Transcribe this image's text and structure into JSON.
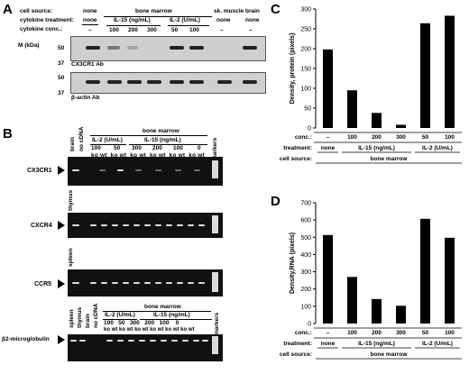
{
  "panel_a": {
    "letter": "A",
    "row_labels": {
      "cell_source": "cell source:",
      "cytokine_treatment": "cytokine treatment:",
      "cytokine_conc": "cytokine conc.:"
    },
    "cell_source": {
      "none": "none",
      "bone_marrow": "bone marrow",
      "sk_muscle": "sk. muscle",
      "brain": "brain"
    },
    "treatment": {
      "none1": "none",
      "il15": "IL-15 (ng/mL)",
      "il2": "IL-2 (U/mL)",
      "none2": "none",
      "none3": "none"
    },
    "conc": [
      "–",
      "100",
      "200",
      "300",
      "50",
      "100",
      "–",
      "–"
    ],
    "mw_axis_label": "M (kDa)",
    "mw_sub": "r",
    "mw_top": [
      "50",
      "37"
    ],
    "mw_bottom": [
      "50",
      "37"
    ],
    "blot_top_label": "CX3CR1 Ab",
    "blot_bottom_label": "β-actin Ab"
  },
  "panel_b": {
    "letter": "B",
    "header": {
      "brain": "brain",
      "no_cdna": "no cDNA",
      "bone_marrow": "bone marrow",
      "il2": "IL-2 (U/mL)",
      "il15": "IL-15 (ng/mL)",
      "conc": [
        "100",
        "50",
        "300",
        "200",
        "100",
        "0"
      ],
      "ko_wt": [
        "ko",
        "wt"
      ],
      "markers": "markers"
    },
    "gels": [
      "CX3CR1",
      "CXCR4",
      "CCR5",
      "β2-microglobulin"
    ],
    "gel_controls": [
      "thymus",
      "spleen"
    ],
    "bottom_header": {
      "spleen": "spleen",
      "thymus": "thymus",
      "brain": "brain",
      "no_cdna": "no cDNA",
      "bone_marrow": "bone marrow",
      "il2": "IL-2 (U/mL)",
      "il15": "IL-15 (ng/mL)",
      "conc": [
        "100",
        "50",
        "300",
        "200",
        "100",
        "0"
      ],
      "ko_wt": [
        "ko",
        "wt"
      ],
      "markers": "markers"
    }
  },
  "chart_data": [
    {
      "panel": "C",
      "type": "bar",
      "ylabel": "Density, protein (pixels)",
      "ylim": [
        0,
        300
      ],
      "yticks": [
        0,
        50,
        100,
        150,
        200,
        250,
        300
      ],
      "categories": [
        "–",
        "100",
        "200",
        "300",
        "50",
        "100"
      ],
      "values": [
        198,
        95,
        38,
        8,
        264,
        283
      ],
      "row_labels": {
        "conc": "conc.:",
        "treatment": "treatment:",
        "cell_source": "cell source:"
      },
      "groups": [
        {
          "label": "none",
          "count": 1
        },
        {
          "label": "IL-15 (ng/mL)",
          "count": 3
        },
        {
          "label": "IL-2 (U/mL)",
          "count": 2
        }
      ],
      "cell_source": "bone marrow"
    },
    {
      "panel": "D",
      "type": "bar",
      "ylabel": "Density,RNA (pixels)",
      "ylim": [
        0,
        700
      ],
      "yticks": [
        0,
        100,
        200,
        300,
        400,
        500,
        600,
        700
      ],
      "categories": [
        "–",
        "100",
        "200",
        "300",
        "50",
        "100"
      ],
      "values": [
        513,
        270,
        142,
        103,
        607,
        497
      ],
      "row_labels": {
        "conc": "conc.:",
        "treatment": "treatment:",
        "cell_source": "cell source:"
      },
      "groups": [
        {
          "label": "none",
          "count": 1
        },
        {
          "label": "IL-15 (ng/mL)",
          "count": 3
        },
        {
          "label": "IL-2 (U/mL)",
          "count": 2
        }
      ],
      "cell_source": "bone marrow"
    }
  ],
  "chart_letters": [
    "C",
    "D"
  ]
}
